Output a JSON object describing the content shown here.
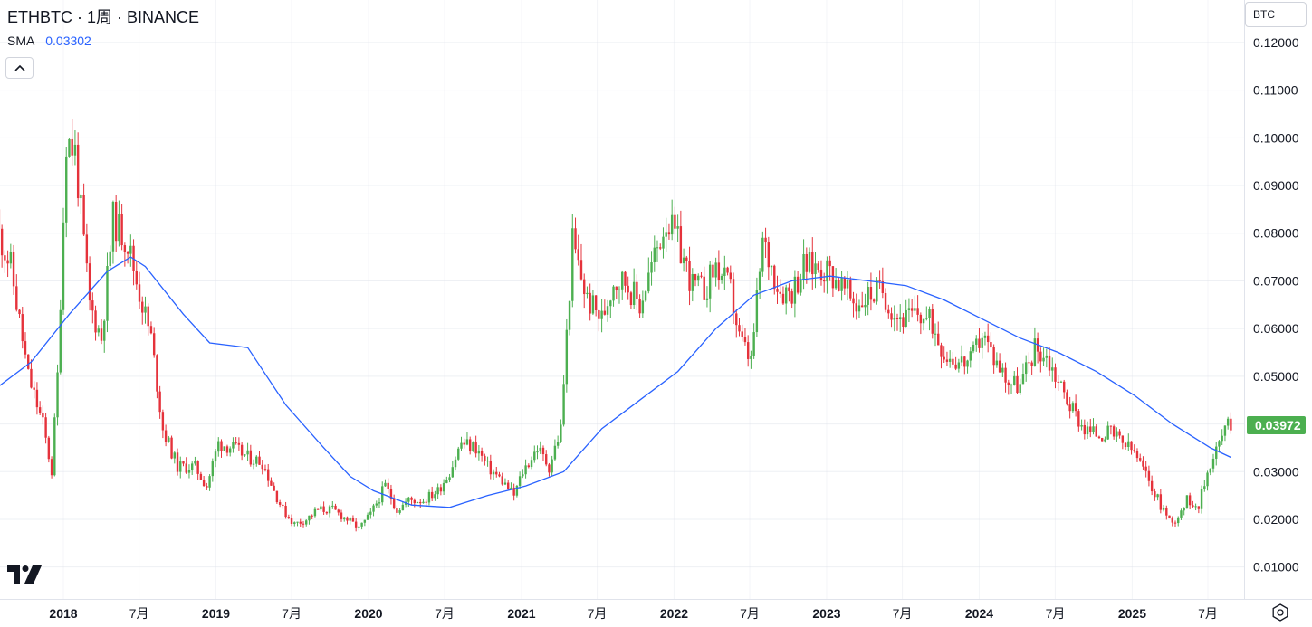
{
  "header": {
    "title": "ETHBTC · 1周 · BINANCE",
    "sma_label": "SMA",
    "sma_value": "0.03302"
  },
  "currency_button": {
    "label": "BTC"
  },
  "colors": {
    "up": "#4caf50",
    "down": "#e5323b",
    "sma": "#2962ff",
    "grid": "#e0e3eb",
    "price_tag": "#4caf50"
  },
  "icons": {
    "collapse": "chevron-up-icon",
    "logo": "tradingview-logo",
    "settings": "settings-icon"
  },
  "chart_data": {
    "type": "candlestick",
    "symbol": "ETHBTC",
    "interval": "1周",
    "exchange": "BINANCE",
    "indicator": {
      "name": "SMA",
      "value": 0.03302
    },
    "last_price": "0.03972",
    "ylim": [
      0.0033,
      0.1289
    ],
    "y_ticks": [
      "0.01000",
      "0.02000",
      "0.03000",
      "0.04000",
      "0.05000",
      "0.06000",
      "0.07000",
      "0.08000",
      "0.09000",
      "0.10000",
      "0.11000",
      "0.12000"
    ],
    "x_ticks": [
      {
        "label": "2018",
        "date": "2018-01-01",
        "bold": true
      },
      {
        "label": "7月",
        "date": "2018-07-01",
        "bold": false
      },
      {
        "label": "2019",
        "date": "2019-01-01",
        "bold": true
      },
      {
        "label": "7月",
        "date": "2019-07-01",
        "bold": false
      },
      {
        "label": "2020",
        "date": "2020-01-01",
        "bold": true
      },
      {
        "label": "7月",
        "date": "2020-07-01",
        "bold": false
      },
      {
        "label": "2021",
        "date": "2021-01-01",
        "bold": true
      },
      {
        "label": "7月",
        "date": "2021-07-01",
        "bold": false
      },
      {
        "label": "2022",
        "date": "2022-01-01",
        "bold": true
      },
      {
        "label": "7月",
        "date": "2022-07-01",
        "bold": false
      },
      {
        "label": "2023",
        "date": "2023-01-01",
        "bold": true
      },
      {
        "label": "7月",
        "date": "2023-07-01",
        "bold": false
      },
      {
        "label": "2024",
        "date": "2024-01-01",
        "bold": true
      },
      {
        "label": "7月",
        "date": "2024-07-01",
        "bold": false
      },
      {
        "label": "2025",
        "date": "2025-01-01",
        "bold": true
      },
      {
        "label": "7月",
        "date": "2025-07-01",
        "bold": false
      }
    ],
    "price_path": [
      [
        "2017-07-17",
        0.085
      ],
      [
        "2017-09-04",
        0.073
      ],
      [
        "2017-10-16",
        0.05
      ],
      [
        "2017-11-20",
        0.04
      ],
      [
        "2017-12-11",
        0.03
      ],
      [
        "2017-12-25",
        0.05
      ],
      [
        "2018-01-15",
        0.1
      ],
      [
        "2018-02-05",
        0.097
      ],
      [
        "2018-03-12",
        0.065
      ],
      [
        "2018-04-09",
        0.058
      ],
      [
        "2018-05-07",
        0.083
      ],
      [
        "2018-06-11",
        0.078
      ],
      [
        "2018-07-02",
        0.07
      ],
      [
        "2018-08-06",
        0.058
      ],
      [
        "2018-09-03",
        0.039
      ],
      [
        "2018-10-08",
        0.031
      ],
      [
        "2018-11-19",
        0.031
      ],
      [
        "2018-12-17",
        0.027
      ],
      [
        "2019-01-14",
        0.036
      ],
      [
        "2019-02-18",
        0.035
      ],
      [
        "2019-03-25",
        0.033
      ],
      [
        "2019-04-29",
        0.032
      ],
      [
        "2019-05-27",
        0.026
      ],
      [
        "2019-06-17",
        0.022
      ],
      [
        "2019-07-15",
        0.019
      ],
      [
        "2019-08-12",
        0.02
      ],
      [
        "2019-09-09",
        0.022
      ],
      [
        "2019-10-14",
        0.022
      ],
      [
        "2019-11-18",
        0.02
      ],
      [
        "2019-12-16",
        0.018
      ],
      [
        "2020-01-13",
        0.021
      ],
      [
        "2020-02-17",
        0.027
      ],
      [
        "2020-03-16",
        0.022
      ],
      [
        "2020-04-13",
        0.024
      ],
      [
        "2020-05-18",
        0.024
      ],
      [
        "2020-06-22",
        0.026
      ],
      [
        "2020-07-20",
        0.03
      ],
      [
        "2020-08-17",
        0.036
      ],
      [
        "2020-09-21",
        0.035
      ],
      [
        "2020-10-19",
        0.031
      ],
      [
        "2020-11-23",
        0.028
      ],
      [
        "2020-12-21",
        0.025
      ],
      [
        "2021-01-11",
        0.03
      ],
      [
        "2021-02-15",
        0.035
      ],
      [
        "2021-03-15",
        0.031
      ],
      [
        "2021-04-12",
        0.039
      ],
      [
        "2021-05-10",
        0.078
      ],
      [
        "2021-06-14",
        0.066
      ],
      [
        "2021-07-19",
        0.062
      ],
      [
        "2021-08-16",
        0.07
      ],
      [
        "2021-09-13",
        0.07
      ],
      [
        "2021-10-18",
        0.065
      ],
      [
        "2021-11-22",
        0.075
      ],
      [
        "2021-12-20",
        0.083
      ],
      [
        "2022-01-17",
        0.078
      ],
      [
        "2022-02-21",
        0.069
      ],
      [
        "2022-03-21",
        0.068
      ],
      [
        "2022-04-18",
        0.073
      ],
      [
        "2022-05-23",
        0.068
      ],
      [
        "2022-06-13",
        0.058
      ],
      [
        "2022-07-11",
        0.053
      ],
      [
        "2022-08-08",
        0.078
      ],
      [
        "2022-09-19",
        0.068
      ],
      [
        "2022-10-17",
        0.068
      ],
      [
        "2022-11-14",
        0.073
      ],
      [
        "2022-12-19",
        0.073
      ],
      [
        "2023-01-16",
        0.072
      ],
      [
        "2023-02-20",
        0.068
      ],
      [
        "2023-03-20",
        0.065
      ],
      [
        "2023-04-17",
        0.067
      ],
      [
        "2023-05-22",
        0.068
      ],
      [
        "2023-06-19",
        0.063
      ],
      [
        "2023-07-17",
        0.062
      ],
      [
        "2023-08-14",
        0.063
      ],
      [
        "2023-09-18",
        0.061
      ],
      [
        "2023-10-16",
        0.055
      ],
      [
        "2023-11-20",
        0.053
      ],
      [
        "2023-12-18",
        0.053
      ],
      [
        "2024-01-15",
        0.059
      ],
      [
        "2024-02-12",
        0.054
      ],
      [
        "2024-03-18",
        0.049
      ],
      [
        "2024-04-15",
        0.048
      ],
      [
        "2024-05-20",
        0.056
      ],
      [
        "2024-06-17",
        0.054
      ],
      [
        "2024-07-15",
        0.049
      ],
      [
        "2024-08-12",
        0.044
      ],
      [
        "2024-09-16",
        0.039
      ],
      [
        "2024-10-14",
        0.038
      ],
      [
        "2024-11-18",
        0.038
      ],
      [
        "2024-12-16",
        0.036
      ],
      [
        "2025-01-13",
        0.034
      ],
      [
        "2025-02-17",
        0.028
      ],
      [
        "2025-03-17",
        0.023
      ],
      [
        "2025-04-14",
        0.019
      ],
      [
        "2025-05-19",
        0.024
      ],
      [
        "2025-06-16",
        0.023
      ],
      [
        "2025-07-14",
        0.032
      ],
      [
        "2025-08-11",
        0.0375
      ],
      [
        "2025-08-25",
        0.0397
      ]
    ],
    "sma_path": [
      [
        "2017-07-17",
        0.047
      ],
      [
        "2017-10-16",
        0.053
      ],
      [
        "2018-01-15",
        0.063
      ],
      [
        "2018-04-16",
        0.072
      ],
      [
        "2018-06-11",
        0.075
      ],
      [
        "2018-07-16",
        0.073
      ],
      [
        "2018-10-15",
        0.063
      ],
      [
        "2018-12-17",
        0.057
      ],
      [
        "2019-03-18",
        0.056
      ],
      [
        "2019-06-17",
        0.044
      ],
      [
        "2019-09-16",
        0.035
      ],
      [
        "2019-11-18",
        0.029
      ],
      [
        "2020-01-13",
        0.026
      ],
      [
        "2020-04-13",
        0.023
      ],
      [
        "2020-07-13",
        0.0225
      ],
      [
        "2020-10-12",
        0.025
      ],
      [
        "2021-01-11",
        0.027
      ],
      [
        "2021-04-12",
        0.03
      ],
      [
        "2021-07-12",
        0.039
      ],
      [
        "2021-10-11",
        0.045
      ],
      [
        "2022-01-10",
        0.051
      ],
      [
        "2022-04-11",
        0.06
      ],
      [
        "2022-07-11",
        0.067
      ],
      [
        "2022-10-10",
        0.07
      ],
      [
        "2023-01-09",
        0.071
      ],
      [
        "2023-04-10",
        0.07
      ],
      [
        "2023-07-10",
        0.069
      ],
      [
        "2023-10-09",
        0.066
      ],
      [
        "2024-01-08",
        0.062
      ],
      [
        "2024-04-08",
        0.058
      ],
      [
        "2024-07-08",
        0.055
      ],
      [
        "2024-10-07",
        0.051
      ],
      [
        "2025-01-06",
        0.046
      ],
      [
        "2025-04-07",
        0.04
      ],
      [
        "2025-07-07",
        0.035
      ],
      [
        "2025-08-25",
        0.033
      ]
    ]
  }
}
